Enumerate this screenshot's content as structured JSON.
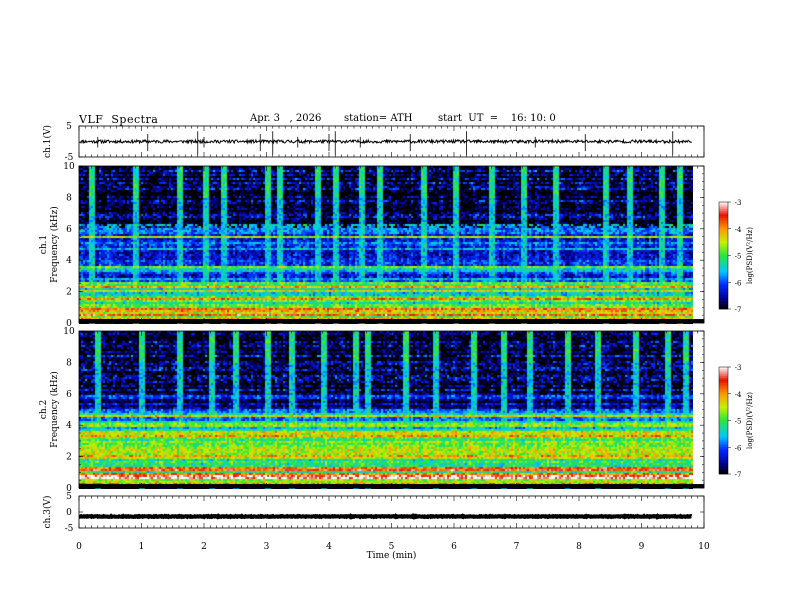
{
  "header": {
    "title": "VLF  Spectra",
    "date": "Apr. 3   , 2026",
    "station": "station= ATH",
    "start_ut": "start  UT  =    16: 10: 0"
  },
  "chart_data": [
    {
      "type": "line",
      "panel": "ch1-waveform",
      "ylabel": "ch.1(V)",
      "ylim": [
        -5,
        5
      ],
      "yticks": [
        "5",
        "-5"
      ],
      "x_range_min": [
        0,
        9.8
      ],
      "baseline_v": 0,
      "typical_amplitude_v": 0.5,
      "spike_times_min": [
        0.3,
        1.1,
        1.9,
        2.0,
        2.9,
        3.1,
        3.5,
        4.0,
        4.1,
        4.5,
        5.3,
        6.2,
        7.3,
        8.1,
        9.5
      ],
      "color": "#000000"
    },
    {
      "type": "heatmap",
      "panel": "ch1-spectrogram",
      "ylabel_channel": "ch.1",
      "ylabel": "Frequency  (kHz)",
      "ylim": [
        0,
        10
      ],
      "yticks": [
        "0",
        "2",
        "4",
        "6",
        "8",
        "10"
      ],
      "colorbar": {
        "label": "log(PSD)(V²/Hz)",
        "range": [
          -7,
          -3
        ],
        "ticks": [
          "-3",
          "-4",
          "-5",
          "-6",
          "-7"
        ]
      },
      "bands_khz": [
        {
          "from": 0.0,
          "to": 0.25,
          "level": -7
        },
        {
          "from": 0.25,
          "to": 0.8,
          "level": -4.5
        },
        {
          "from": 0.8,
          "to": 2.6,
          "level": -5.2
        },
        {
          "from": 2.6,
          "to": 6.2,
          "level": -6.0
        },
        {
          "from": 6.2,
          "to": 10.0,
          "level": -6.6
        }
      ],
      "lines_khz": [
        0.5,
        0.9,
        1.5,
        2.0,
        2.3,
        3.5,
        5.5,
        6.2
      ],
      "sferic_times_min": [
        0.2,
        0.9,
        1.6,
        2.0,
        2.3,
        3.0,
        3.2,
        3.8,
        4.1,
        4.5,
        4.8,
        5.5,
        6.0,
        6.6,
        7.1,
        7.6,
        8.4,
        8.8,
        9.3,
        9.6
      ]
    },
    {
      "type": "heatmap",
      "panel": "ch2-spectrogram",
      "ylabel_channel": "ch.2",
      "ylabel": "Frequency  (kHz)",
      "ylim": [
        0,
        10
      ],
      "yticks": [
        "0",
        "2",
        "4",
        "6",
        "8",
        "10"
      ],
      "colorbar": {
        "label": "log(PSD)(V²/Hz)",
        "range": [
          -7,
          -3
        ],
        "ticks": [
          "-3",
          "-4",
          "-5",
          "-6",
          "-7"
        ]
      },
      "bands_khz": [
        {
          "from": 0.0,
          "to": 0.25,
          "level": -7
        },
        {
          "from": 0.25,
          "to": 1.0,
          "level": -4.3
        },
        {
          "from": 1.0,
          "to": 3.8,
          "level": -4.8
        },
        {
          "from": 3.8,
          "to": 5.0,
          "level": -5.6
        },
        {
          "from": 5.0,
          "to": 10.0,
          "level": -6.5
        }
      ],
      "lines_khz": [
        0.7,
        1.2,
        2.0,
        3.3,
        4.0,
        4.6
      ],
      "sferic_times_min": [
        0.3,
        1.0,
        1.6,
        2.1,
        2.5,
        3.0,
        3.4,
        3.9,
        4.4,
        4.6,
        5.2,
        5.7,
        6.3,
        6.8,
        7.2,
        7.8,
        8.3,
        8.9,
        9.4,
        9.7
      ]
    },
    {
      "type": "line",
      "panel": "ch3-waveform",
      "ylabel": "ch.3(V)",
      "ylim": [
        -5,
        5
      ],
      "yticks": [
        "5",
        "0",
        "-5"
      ],
      "x_range_min": [
        0,
        9.8
      ],
      "baseline_v": -1.4,
      "color": "#000000"
    },
    {
      "type": "axis",
      "panel": "time-axis",
      "xlabel": "Time  (min)",
      "xlim": [
        0,
        10
      ],
      "xticks": [
        "0",
        "1",
        "2",
        "3",
        "4",
        "5",
        "6",
        "7",
        "8",
        "9",
        "10"
      ]
    }
  ]
}
